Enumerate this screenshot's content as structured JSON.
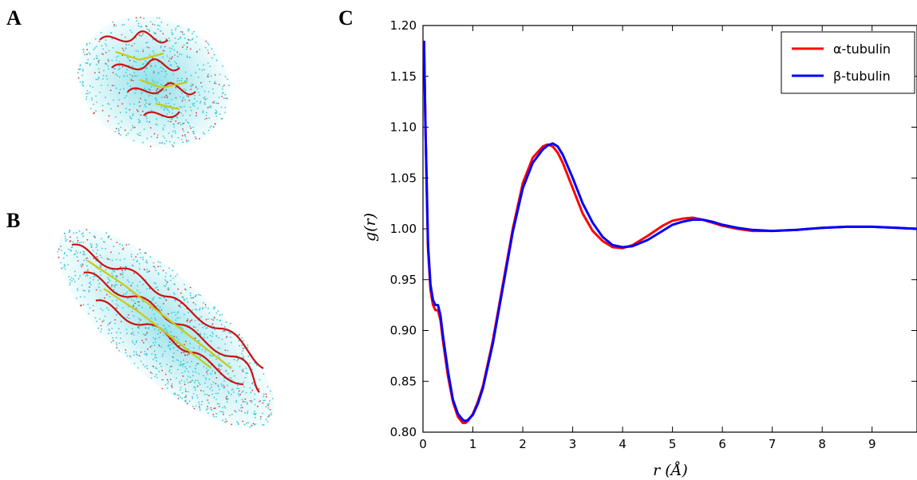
{
  "panels": {
    "a": "A",
    "b": "B",
    "c": "C"
  },
  "colors": {
    "alpha": "#ff0000",
    "beta": "#0000ff",
    "water": "#39c8d6",
    "helix": "#cc1111",
    "sheet": "#c9c916"
  },
  "molecule_a": {
    "icon": "protein-water-box-icon"
  },
  "molecule_b": {
    "icon": "microtubule-water-box-icon"
  },
  "chart_data": {
    "type": "line",
    "title": "",
    "xlabel": "r (Å)",
    "ylabel": "g(r)",
    "xlim": [
      0,
      9.9
    ],
    "ylim": [
      0.8,
      1.2
    ],
    "xticks": [
      "0",
      "1",
      "2",
      "3",
      "4",
      "5",
      "6",
      "7",
      "8",
      "9"
    ],
    "yticks": [
      "0.80",
      "0.85",
      "0.90",
      "0.95",
      "1.00",
      "1.05",
      "1.10",
      "1.15",
      "1.20"
    ],
    "legend_position": "top-right",
    "grid": false,
    "series": [
      {
        "name": "α-tubulin",
        "x": [
          0.02,
          0.05,
          0.1,
          0.15,
          0.2,
          0.25,
          0.3,
          0.35,
          0.4,
          0.5,
          0.6,
          0.7,
          0.8,
          0.85,
          0.9,
          1.0,
          1.1,
          1.2,
          1.4,
          1.6,
          1.8,
          2.0,
          2.2,
          2.4,
          2.5,
          2.6,
          2.7,
          2.8,
          3.0,
          3.2,
          3.4,
          3.6,
          3.8,
          4.0,
          4.2,
          4.5,
          4.8,
          5.0,
          5.2,
          5.4,
          5.6,
          5.8,
          6.0,
          6.3,
          6.6,
          7.0,
          7.5,
          8.0,
          8.5,
          9.0,
          9.5,
          9.9
        ],
        "y": [
          1.185,
          1.1,
          0.98,
          0.94,
          0.925,
          0.92,
          0.92,
          0.91,
          0.89,
          0.855,
          0.83,
          0.815,
          0.809,
          0.809,
          0.811,
          0.818,
          0.83,
          0.845,
          0.89,
          0.945,
          1.0,
          1.045,
          1.07,
          1.081,
          1.083,
          1.081,
          1.075,
          1.065,
          1.04,
          1.015,
          0.998,
          0.988,
          0.982,
          0.981,
          0.984,
          0.993,
          1.003,
          1.008,
          1.01,
          1.011,
          1.009,
          1.006,
          1.003,
          1.0,
          0.998,
          0.998,
          0.999,
          1.001,
          1.002,
          1.002,
          1.001,
          1.0
        ]
      },
      {
        "name": "β-tubulin",
        "x": [
          0.02,
          0.05,
          0.1,
          0.15,
          0.2,
          0.25,
          0.3,
          0.35,
          0.4,
          0.5,
          0.6,
          0.7,
          0.8,
          0.85,
          0.9,
          1.0,
          1.1,
          1.2,
          1.4,
          1.6,
          1.8,
          2.0,
          2.2,
          2.4,
          2.5,
          2.6,
          2.7,
          2.8,
          3.0,
          3.2,
          3.4,
          3.6,
          3.8,
          4.0,
          4.2,
          4.5,
          4.8,
          5.0,
          5.2,
          5.4,
          5.6,
          5.8,
          6.0,
          6.3,
          6.6,
          7.0,
          7.5,
          8.0,
          8.5,
          9.0,
          9.5,
          9.9
        ],
        "y": [
          1.185,
          1.1,
          0.985,
          0.945,
          0.93,
          0.925,
          0.925,
          0.915,
          0.895,
          0.86,
          0.832,
          0.818,
          0.812,
          0.811,
          0.812,
          0.817,
          0.828,
          0.843,
          0.887,
          0.942,
          0.997,
          1.04,
          1.065,
          1.078,
          1.082,
          1.084,
          1.081,
          1.073,
          1.05,
          1.025,
          1.006,
          0.992,
          0.984,
          0.982,
          0.983,
          0.989,
          0.998,
          1.004,
          1.007,
          1.009,
          1.009,
          1.007,
          1.004,
          1.001,
          0.999,
          0.998,
          0.999,
          1.001,
          1.002,
          1.002,
          1.001,
          1.0
        ]
      }
    ]
  }
}
